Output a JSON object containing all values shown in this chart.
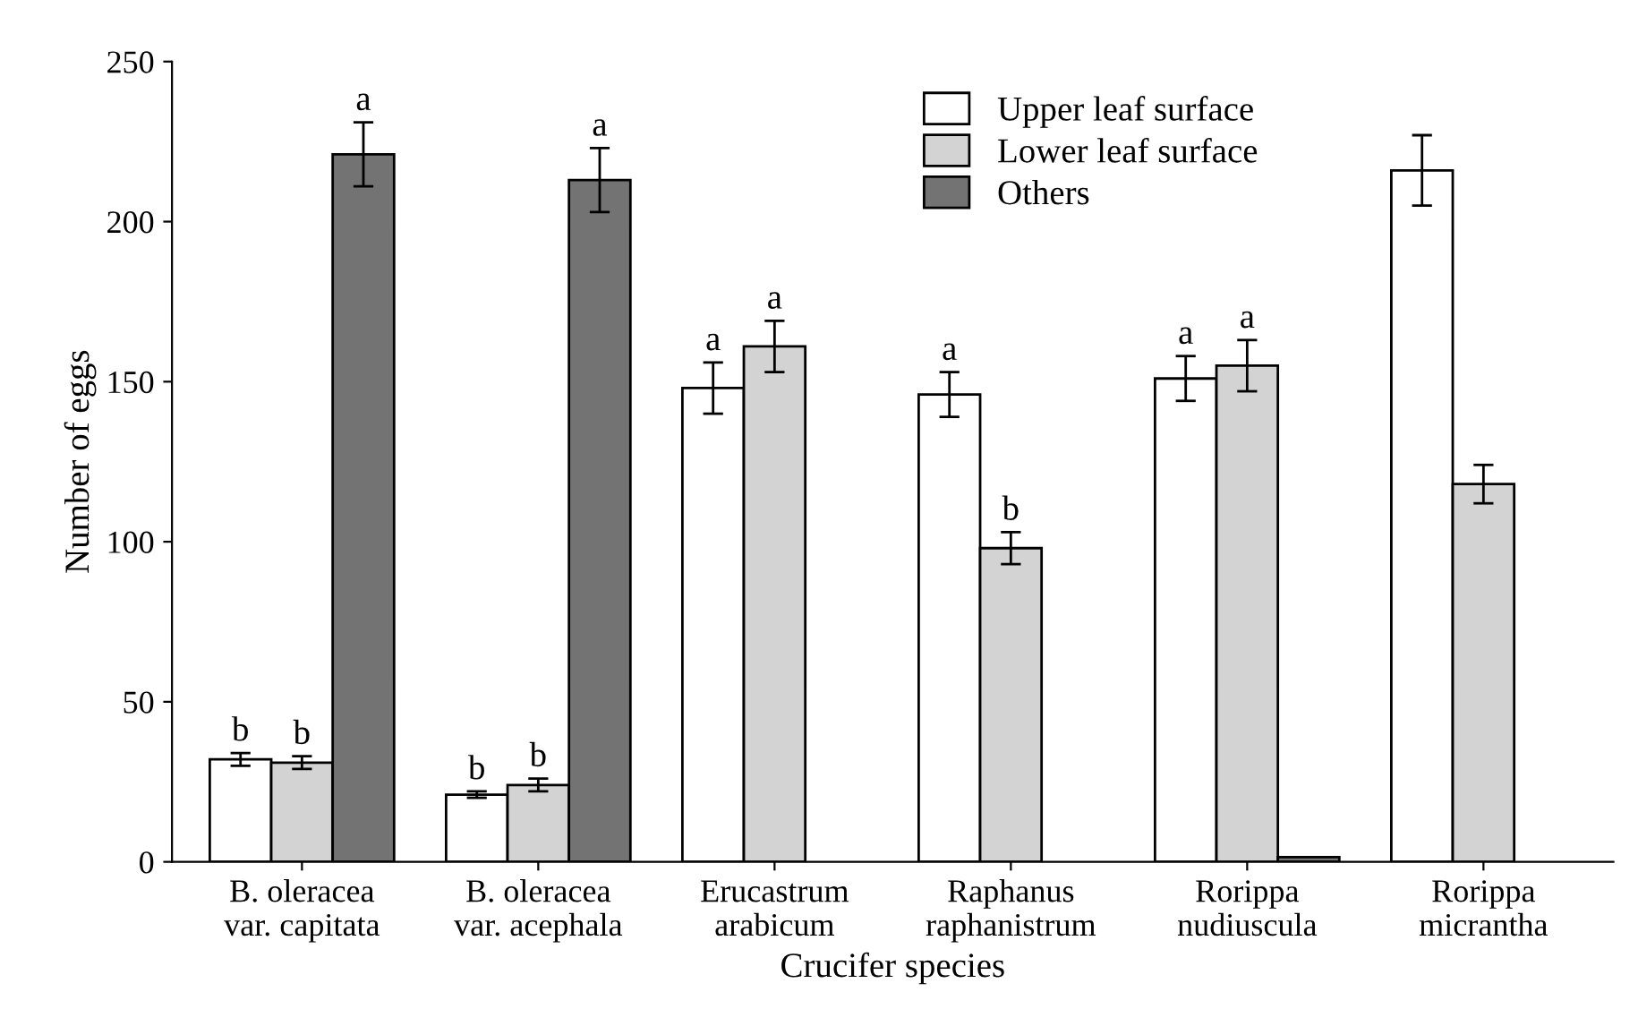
{
  "chart_data": {
    "type": "bar",
    "xlabel": "Crucifer species",
    "ylabel": "Number of eggs",
    "categories": [
      "B. oleracea\nvar. capitata",
      "B. oleracea\nvar. acephala",
      "Erucastrum\narabicum",
      "Raphanus\nraphanistrum",
      "Rorippa\nnudiuscula",
      "Rorippa\nmicrantha"
    ],
    "series": [
      {
        "name": "Upper leaf surface",
        "color": "#ffffff",
        "values": [
          32,
          21,
          148,
          146,
          151,
          216
        ],
        "errors": [
          2,
          1,
          8,
          7,
          7,
          11
        ],
        "value_labels": [
          "b",
          "b",
          "a",
          "a",
          "a",
          null
        ]
      },
      {
        "name": "Lower leaf surface",
        "color": "#d3d3d3",
        "values": [
          31,
          24,
          161,
          98,
          155,
          118
        ],
        "errors": [
          2,
          2,
          8,
          5,
          8,
          6
        ],
        "value_labels": [
          "b",
          "b",
          "a",
          "b",
          "a",
          null
        ]
      },
      {
        "name": "Others",
        "color": "#737373",
        "values": [
          221,
          213,
          null,
          null,
          1.5,
          null
        ],
        "errors": [
          10,
          10,
          null,
          null,
          null,
          null
        ],
        "value_labels": [
          "a",
          "a",
          null,
          null,
          null,
          null
        ]
      }
    ],
    "ylim": [
      0,
      250
    ],
    "yticks": [
      0,
      50,
      100,
      150,
      200,
      250
    ],
    "legend": "top",
    "grid": false
  }
}
